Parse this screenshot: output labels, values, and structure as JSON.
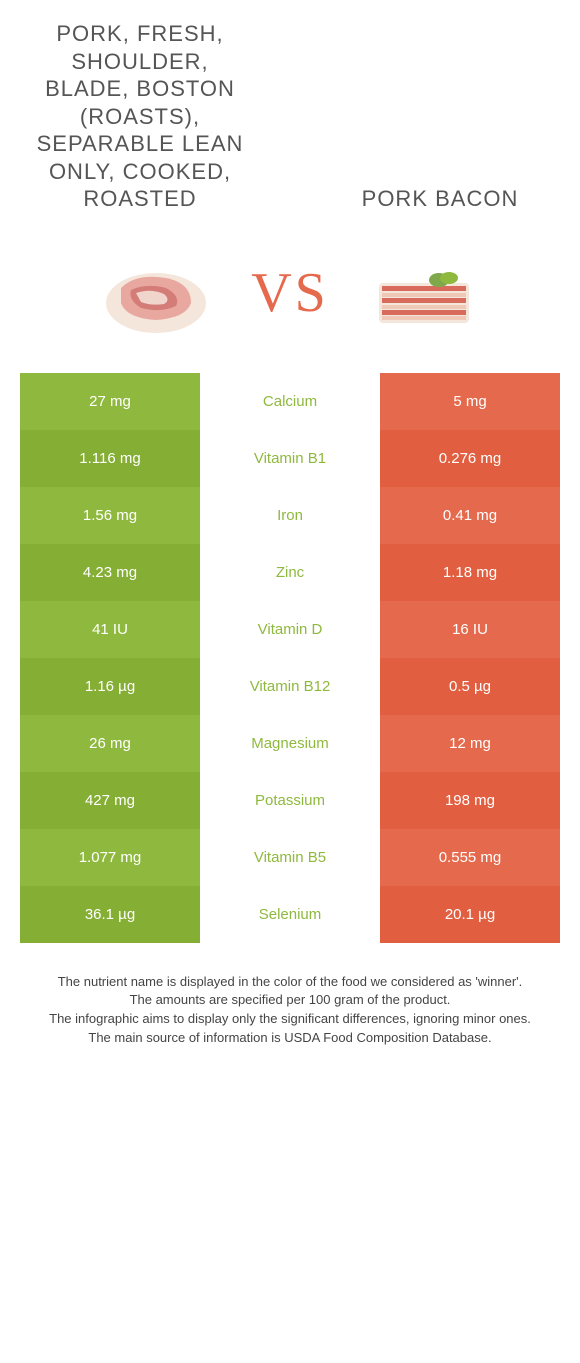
{
  "colors": {
    "green_a": "#8fb93e",
    "green_b": "#84ae34",
    "orange_a": "#e5694c",
    "orange_b": "#e15f40",
    "mid_green": "#8fb93e",
    "vs": "#e5694c",
    "title": "#555555"
  },
  "header": {
    "left_title": "PORK, FRESH, SHOULDER, BLADE, BOSTON (ROASTS), SEPARABLE LEAN ONLY, COOKED, ROASTED",
    "right_title": "PORK BACON",
    "vs": "VS"
  },
  "rows": [
    {
      "left": "27 mg",
      "mid": "Calcium",
      "right": "5 mg",
      "winner": "left"
    },
    {
      "left": "1.116 mg",
      "mid": "Vitamin B1",
      "right": "0.276 mg",
      "winner": "left"
    },
    {
      "left": "1.56 mg",
      "mid": "Iron",
      "right": "0.41 mg",
      "winner": "left"
    },
    {
      "left": "4.23 mg",
      "mid": "Zinc",
      "right": "1.18 mg",
      "winner": "left"
    },
    {
      "left": "41 IU",
      "mid": "Vitamin D",
      "right": "16 IU",
      "winner": "left"
    },
    {
      "left": "1.16 µg",
      "mid": "Vitamin B12",
      "right": "0.5 µg",
      "winner": "left"
    },
    {
      "left": "26 mg",
      "mid": "Magnesium",
      "right": "12 mg",
      "winner": "left"
    },
    {
      "left": "427 mg",
      "mid": "Potassium",
      "right": "198 mg",
      "winner": "left"
    },
    {
      "left": "1.077 mg",
      "mid": "Vitamin B5",
      "right": "0.555 mg",
      "winner": "left"
    },
    {
      "left": "36.1 µg",
      "mid": "Selenium",
      "right": "20.1 µg",
      "winner": "left"
    }
  ],
  "footer": {
    "l1": "The nutrient name is displayed in the color of the food we considered as 'winner'.",
    "l2": "The amounts are specified per 100 gram of the product.",
    "l3": "The infographic aims to display only the significant differences, ignoring minor ones.",
    "l4": "The main source of information is USDA Food Composition Database."
  }
}
